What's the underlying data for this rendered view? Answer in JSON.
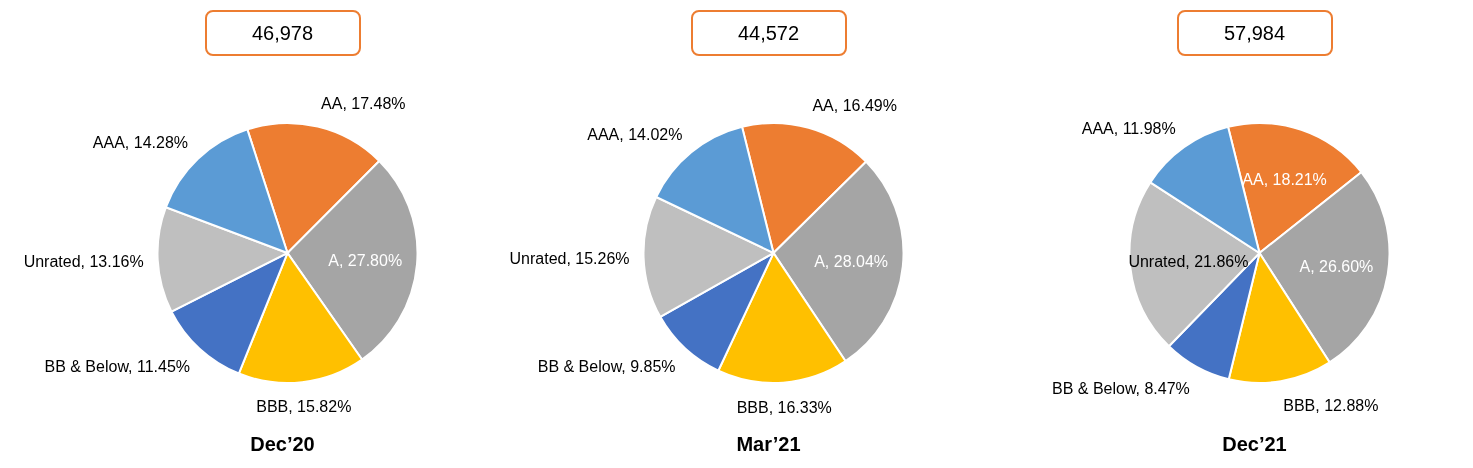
{
  "chart_data": [
    {
      "type": "pie",
      "title": "Dec’20",
      "annotations": [
        "46,978"
      ],
      "categories": [
        "AA",
        "A",
        "BBB",
        "BB & Below",
        "Unrated",
        "AAA"
      ],
      "values": [
        17.48,
        27.8,
        15.82,
        11.45,
        13.16,
        14.28
      ],
      "value_labels": [
        "17.48%",
        "27.80%",
        "15.82%",
        "11.45%",
        "13.16%",
        "14.28%"
      ],
      "colors": [
        "#ed7d31",
        "#a5a5a5",
        "#ffc000",
        "#4472c4",
        "#bfbfbf",
        "#5b9bd5"
      ]
    },
    {
      "type": "pie",
      "title": "Mar’21",
      "annotations": [
        "44,572"
      ],
      "categories": [
        "AA",
        "A",
        "BBB",
        "BB & Below",
        "Unrated",
        "AAA"
      ],
      "values": [
        16.49,
        28.04,
        16.33,
        9.85,
        15.26,
        14.02
      ],
      "value_labels": [
        "16.49%",
        "28.04%",
        "16.33%",
        "9.85%",
        "15.26%",
        "14.02%"
      ],
      "colors": [
        "#ed7d31",
        "#a5a5a5",
        "#ffc000",
        "#4472c4",
        "#bfbfbf",
        "#5b9bd5"
      ]
    },
    {
      "type": "pie",
      "title": "Dec’21",
      "annotations": [
        "57,984"
      ],
      "categories": [
        "AA",
        "A",
        "BBB",
        "BB & Below",
        "Unrated",
        "AAA"
      ],
      "values": [
        18.21,
        26.6,
        12.88,
        8.47,
        21.86,
        11.98
      ],
      "value_labels": [
        "18.21%",
        "26.60%",
        "12.88%",
        "8.47%",
        "21.86%",
        "11.98%"
      ],
      "colors": [
        "#ed7d31",
        "#a5a5a5",
        "#ffc000",
        "#4472c4",
        "#bfbfbf",
        "#5b9bd5"
      ]
    }
  ]
}
